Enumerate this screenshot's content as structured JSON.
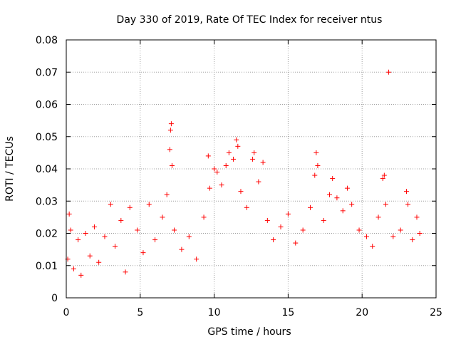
{
  "chart_data": {
    "type": "scatter",
    "title": "Day 330 of 2019, Rate Of TEC Index for receiver ntus",
    "xlabel": "GPS time / hours",
    "ylabel": "ROTI / TECUs",
    "xlim": [
      0,
      25
    ],
    "ylim": [
      0,
      0.08
    ],
    "x_ticks": [
      0,
      5,
      10,
      15,
      20,
      25
    ],
    "x_tick_labels": [
      "0",
      "5",
      "10",
      "15",
      "20",
      "25"
    ],
    "y_ticks": [
      0,
      0.01,
      0.02,
      0.03,
      0.04,
      0.05,
      0.06,
      0.07,
      0.08
    ],
    "y_tick_labels": [
      "0",
      "0.01",
      "0.02",
      "0.03",
      "0.04",
      "0.05",
      "0.06",
      "0.07",
      "0.08"
    ],
    "grid": true,
    "marker": "+",
    "color": "#ff0000",
    "series": [
      {
        "name": "ROTI",
        "points": [
          [
            0.1,
            0.012
          ],
          [
            0.2,
            0.026
          ],
          [
            0.3,
            0.021
          ],
          [
            0.5,
            0.009
          ],
          [
            0.8,
            0.018
          ],
          [
            1.0,
            0.007
          ],
          [
            1.3,
            0.02
          ],
          [
            1.6,
            0.013
          ],
          [
            1.9,
            0.022
          ],
          [
            2.2,
            0.011
          ],
          [
            2.6,
            0.019
          ],
          [
            3.0,
            0.029
          ],
          [
            3.3,
            0.016
          ],
          [
            3.7,
            0.024
          ],
          [
            4.0,
            0.008
          ],
          [
            4.3,
            0.028
          ],
          [
            4.8,
            0.021
          ],
          [
            5.2,
            0.014
          ],
          [
            5.6,
            0.029
          ],
          [
            6.0,
            0.018
          ],
          [
            6.5,
            0.025
          ],
          [
            6.8,
            0.032
          ],
          [
            7.0,
            0.046
          ],
          [
            7.05,
            0.052
          ],
          [
            7.1,
            0.054
          ],
          [
            7.15,
            0.041
          ],
          [
            7.3,
            0.021
          ],
          [
            7.8,
            0.015
          ],
          [
            8.3,
            0.019
          ],
          [
            8.8,
            0.012
          ],
          [
            9.3,
            0.025
          ],
          [
            9.6,
            0.044
          ],
          [
            9.7,
            0.034
          ],
          [
            10.0,
            0.04
          ],
          [
            10.2,
            0.039
          ],
          [
            10.5,
            0.035
          ],
          [
            10.8,
            0.041
          ],
          [
            11.0,
            0.045
          ],
          [
            11.3,
            0.043
          ],
          [
            11.5,
            0.049
          ],
          [
            11.6,
            0.047
          ],
          [
            11.8,
            0.033
          ],
          [
            12.2,
            0.028
          ],
          [
            12.6,
            0.043
          ],
          [
            12.7,
            0.045
          ],
          [
            13.0,
            0.036
          ],
          [
            13.3,
            0.042
          ],
          [
            13.6,
            0.024
          ],
          [
            14.0,
            0.018
          ],
          [
            14.5,
            0.022
          ],
          [
            15.0,
            0.026
          ],
          [
            15.5,
            0.017
          ],
          [
            16.0,
            0.021
          ],
          [
            16.5,
            0.028
          ],
          [
            16.8,
            0.038
          ],
          [
            16.9,
            0.045
          ],
          [
            17.0,
            0.041
          ],
          [
            17.4,
            0.024
          ],
          [
            17.8,
            0.032
          ],
          [
            18.0,
            0.037
          ],
          [
            18.3,
            0.031
          ],
          [
            18.7,
            0.027
          ],
          [
            19.0,
            0.034
          ],
          [
            19.3,
            0.029
          ],
          [
            19.8,
            0.021
          ],
          [
            20.3,
            0.019
          ],
          [
            20.7,
            0.016
          ],
          [
            21.1,
            0.025
          ],
          [
            21.4,
            0.037
          ],
          [
            21.5,
            0.038
          ],
          [
            21.6,
            0.029
          ],
          [
            21.8,
            0.07
          ],
          [
            22.1,
            0.019
          ],
          [
            22.6,
            0.021
          ],
          [
            23.0,
            0.033
          ],
          [
            23.1,
            0.029
          ],
          [
            23.4,
            0.018
          ],
          [
            23.7,
            0.025
          ],
          [
            23.9,
            0.02
          ]
        ]
      }
    ]
  }
}
